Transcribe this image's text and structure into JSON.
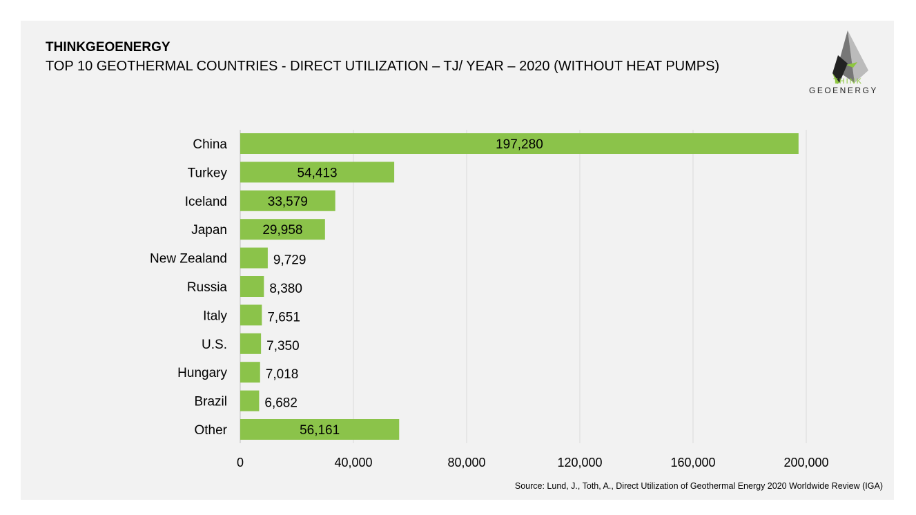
{
  "header": {
    "brand": "THINKGEOENERGY",
    "title": "TOP 10 GEOTHERMAL COUNTRIES - DIRECT UTILIZATION – TJ/ YEAR – 2020 (WITHOUT HEAT PUMPS)"
  },
  "logo": {
    "think": "THINK",
    "geoenergy": "GEOENERGY"
  },
  "source": "Source: Lund, J., Toth, A., Direct Utilization of Geothermal Energy 2020 Worldwide Review (IGA)",
  "colors": {
    "bar": "#8bc34a",
    "grid": "#d9d9d9",
    "panel": "#f2f2f2"
  },
  "chart_data": {
    "type": "bar",
    "orientation": "horizontal",
    "title": "TOP 10 GEOTHERMAL COUNTRIES - DIRECT UTILIZATION – TJ/ YEAR – 2020 (WITHOUT HEAT PUMPS)",
    "categories": [
      "China",
      "Turkey",
      "Iceland",
      "Japan",
      "New Zealand",
      "Russia",
      "Italy",
      "U.S.",
      "Hungary",
      "Brazil",
      "Other"
    ],
    "values": [
      197280,
      54413,
      33579,
      29958,
      9729,
      8380,
      7651,
      7350,
      7018,
      6682,
      56161
    ],
    "labels": [
      "197,280",
      "54,413",
      "33,579",
      "29,958",
      "9,729",
      "8,380",
      "7,651",
      "7,350",
      "7,018",
      "6,682",
      "56,161"
    ],
    "xlim": [
      0,
      200000
    ],
    "xticks": [
      0,
      40000,
      80000,
      120000,
      160000,
      200000
    ],
    "xtick_labels": [
      "0",
      "40,000",
      "80,000",
      "120,000",
      "160,000",
      "200,000"
    ],
    "grid": true,
    "xlabel": "",
    "ylabel": ""
  }
}
